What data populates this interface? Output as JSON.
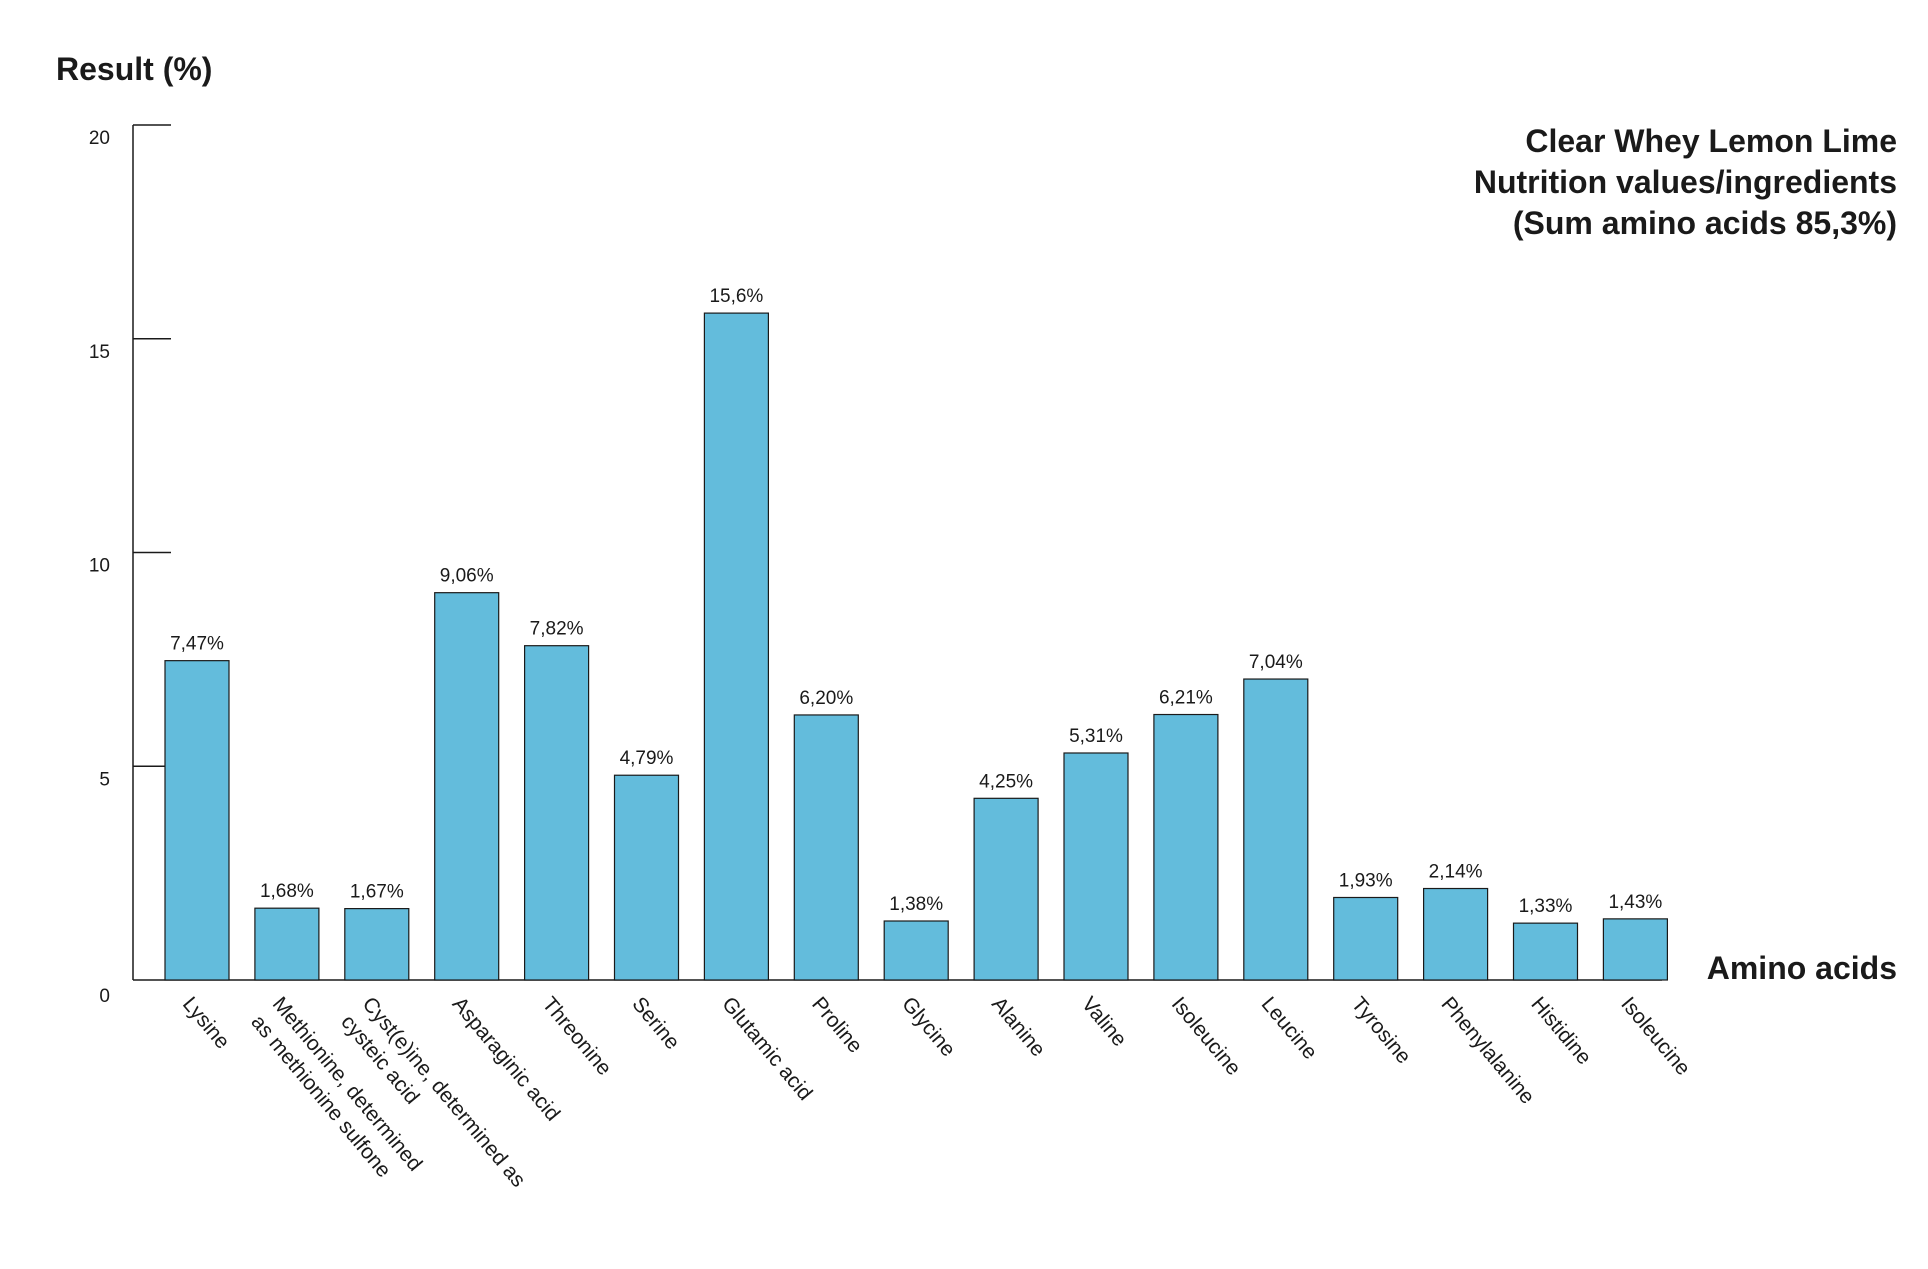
{
  "chart_data": {
    "type": "bar",
    "title_lines": [
      "Clear Whey Lemon Lime",
      "Nutrition values/ingredients",
      "(Sum amino acids 85,3%)"
    ],
    "ylabel": "Result (%)",
    "xlabel": "Amino acids",
    "ylim": [
      0,
      20
    ],
    "yticks": [
      0,
      5,
      10,
      15,
      20
    ],
    "grid": false,
    "bar_color": "#63bcdc",
    "bar_edge_color": "#1a1a1a",
    "categories": [
      [
        "Lysine"
      ],
      [
        "Methionine, determined",
        "as methionine sulfone"
      ],
      [
        "Cyst(e)ine, determined as",
        "cysteic acid"
      ],
      [
        "Asparaginic acid"
      ],
      [
        "Threonine"
      ],
      [
        "Serine"
      ],
      [
        "Glutamic acid"
      ],
      [
        "Proline"
      ],
      [
        "Glycine"
      ],
      [
        "Alanine"
      ],
      [
        "Valine"
      ],
      [
        "Isoleucine"
      ],
      [
        "Leucine"
      ],
      [
        "Tyrosine"
      ],
      [
        "Phenylalanine"
      ],
      [
        "Histidine"
      ],
      [
        "Isoleucine"
      ]
    ],
    "values": [
      7.47,
      1.68,
      1.67,
      9.06,
      7.82,
      4.79,
      15.6,
      6.2,
      1.38,
      4.25,
      5.31,
      6.21,
      7.04,
      1.93,
      2.14,
      1.33,
      1.43
    ],
    "data_labels": [
      "7,47%",
      "1,68%",
      "1,67%",
      "9,06%",
      "7,82%",
      "4,79%",
      "15,6%",
      "6,20%",
      "1,38%",
      "4,25%",
      "5,31%",
      "6,21%",
      "7,04%",
      "1,93%",
      "2,14%",
      "1,33%",
      "1,43%"
    ]
  }
}
